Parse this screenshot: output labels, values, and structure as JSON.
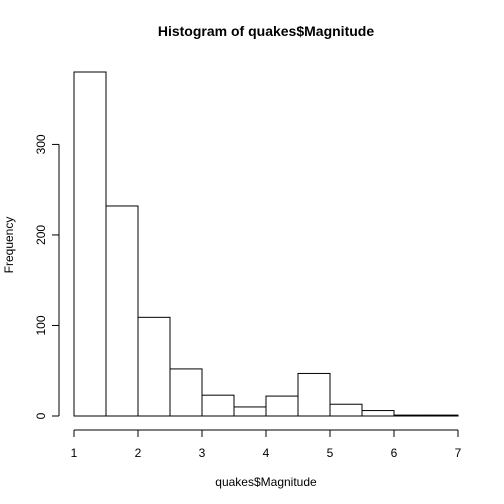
{
  "chart_data": {
    "type": "bar",
    "title": "Histogram of quakes$Magnitude",
    "xlabel": "quakes$Magnitude",
    "ylabel": "Frequency",
    "bins": [
      {
        "from": 1.0,
        "to": 1.5,
        "count": 380
      },
      {
        "from": 1.5,
        "to": 2.0,
        "count": 232
      },
      {
        "from": 2.0,
        "to": 2.5,
        "count": 109
      },
      {
        "from": 2.5,
        "to": 3.0,
        "count": 52
      },
      {
        "from": 3.0,
        "to": 3.5,
        "count": 23
      },
      {
        "from": 3.5,
        "to": 4.0,
        "count": 10
      },
      {
        "from": 4.0,
        "to": 4.5,
        "count": 22
      },
      {
        "from": 4.5,
        "to": 5.0,
        "count": 47
      },
      {
        "from": 5.0,
        "to": 5.5,
        "count": 13
      },
      {
        "from": 5.5,
        "to": 6.0,
        "count": 6
      },
      {
        "from": 6.0,
        "to": 6.5,
        "count": 1
      },
      {
        "from": 6.5,
        "to": 7.0,
        "count": 1
      }
    ],
    "xlim": [
      1,
      7
    ],
    "ylim": [
      0,
      380
    ],
    "x_ticks": [
      1,
      2,
      3,
      4,
      5,
      6,
      7
    ],
    "y_ticks": [
      0,
      100,
      200,
      300
    ],
    "grid": false,
    "bar_fill": "#ffffff",
    "bar_stroke": "#000000"
  }
}
